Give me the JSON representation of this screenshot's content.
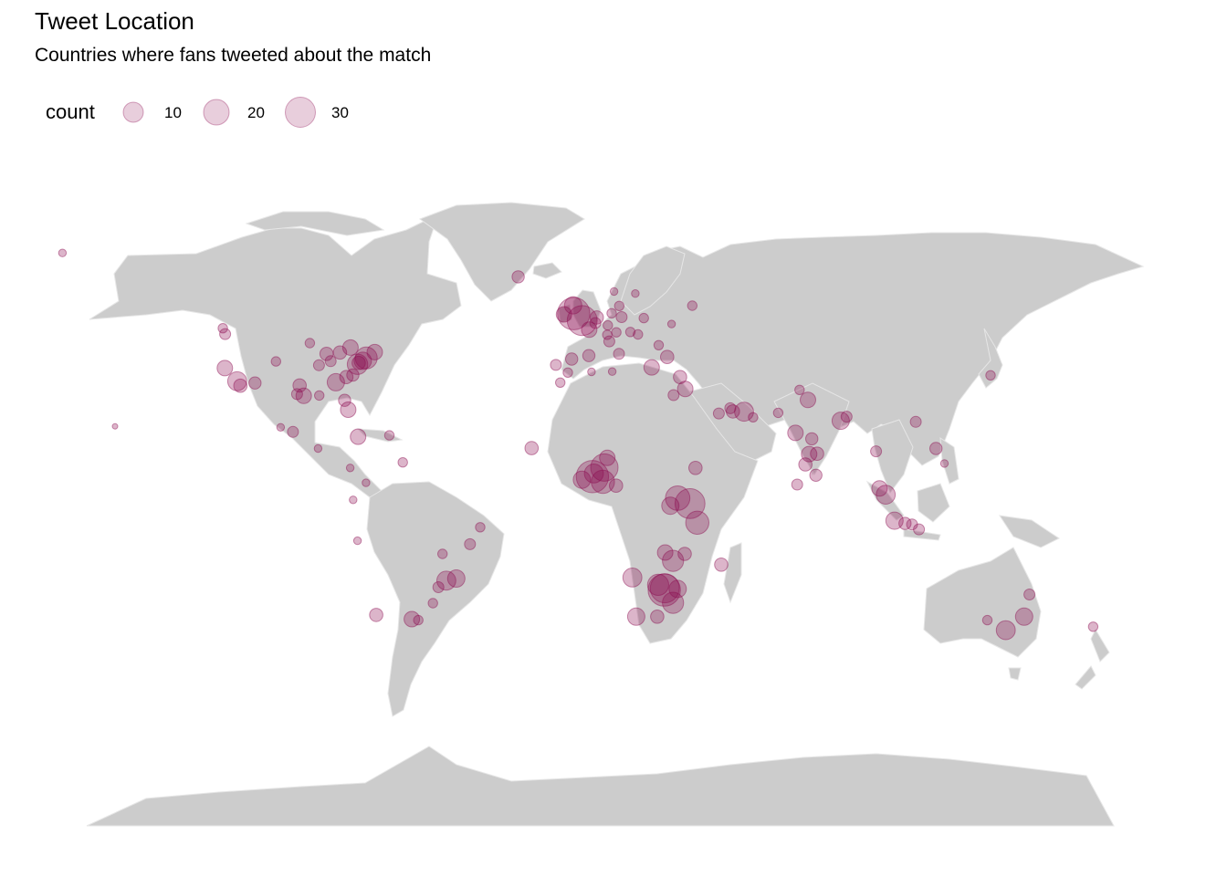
{
  "title": "Tweet Location",
  "subtitle": "Countries where fans tweeted about the match",
  "colors": {
    "land": "#cccccc",
    "border": "#e6e6e6",
    "point": "#8b0a50",
    "background": "#ffffff"
  },
  "legend": {
    "title": "count",
    "items": [
      {
        "label": "10",
        "value": 10
      },
      {
        "label": "20",
        "value": 20
      },
      {
        "label": "30",
        "value": 30
      }
    ]
  },
  "chart_data": {
    "type": "scatter",
    "title": "Tweet Location",
    "subtitle": "Countries where fans tweeted about the match",
    "projection": "equirectangular world map (longitude/latitude)",
    "size_variable": "count",
    "xlim": [
      -180,
      180
    ],
    "ylim": [
      -90,
      84
    ],
    "legend_position": "top-left",
    "grid": false,
    "points": [
      {
        "lon": -178,
        "lat": 71,
        "count": 2
      },
      {
        "lon": -160,
        "lat": 21,
        "count": 1
      },
      {
        "lon": -122.4,
        "lat": 37.8,
        "count": 8
      },
      {
        "lon": -118.2,
        "lat": 34.0,
        "count": 12
      },
      {
        "lon": -117.1,
        "lat": 32.7,
        "count": 6
      },
      {
        "lon": -122.3,
        "lat": 47.6,
        "count": 4
      },
      {
        "lon": -123.1,
        "lat": 49.3,
        "count": 3
      },
      {
        "lon": -112.1,
        "lat": 33.5,
        "count": 5
      },
      {
        "lon": -104.9,
        "lat": 39.7,
        "count": 3
      },
      {
        "lon": -96.8,
        "lat": 32.8,
        "count": 6
      },
      {
        "lon": -95.4,
        "lat": 29.8,
        "count": 8
      },
      {
        "lon": -97.7,
        "lat": 30.3,
        "count": 4
      },
      {
        "lon": -90.1,
        "lat": 29.9,
        "count": 3
      },
      {
        "lon": -87.6,
        "lat": 41.9,
        "count": 6
      },
      {
        "lon": -84.4,
        "lat": 33.7,
        "count": 10
      },
      {
        "lon": -80.2,
        "lat": 25.8,
        "count": 8
      },
      {
        "lon": -81.4,
        "lat": 28.5,
        "count": 5
      },
      {
        "lon": -77.0,
        "lat": 38.9,
        "count": 14
      },
      {
        "lon": -74.0,
        "lat": 40.7,
        "count": 16
      },
      {
        "lon": -75.2,
        "lat": 39.9,
        "count": 10
      },
      {
        "lon": -71.1,
        "lat": 42.4,
        "count": 8
      },
      {
        "lon": -79.4,
        "lat": 43.7,
        "count": 8
      },
      {
        "lon": -83.0,
        "lat": 42.3,
        "count": 6
      },
      {
        "lon": -86.2,
        "lat": 39.8,
        "count": 4
      },
      {
        "lon": -90.2,
        "lat": 38.6,
        "count": 4
      },
      {
        "lon": -93.3,
        "lat": 45.0,
        "count": 3
      },
      {
        "lon": -80.8,
        "lat": 35.2,
        "count": 6
      },
      {
        "lon": -78.6,
        "lat": 35.8,
        "count": 5
      },
      {
        "lon": -76.6,
        "lat": 39.3,
        "count": 6
      },
      {
        "lon": -99.1,
        "lat": 19.4,
        "count": 4
      },
      {
        "lon": -103.3,
        "lat": 20.7,
        "count": 2
      },
      {
        "lon": -90.5,
        "lat": 14.6,
        "count": 2
      },
      {
        "lon": -76.8,
        "lat": 18.0,
        "count": 8
      },
      {
        "lon": -66.1,
        "lat": 18.4,
        "count": 3
      },
      {
        "lon": -61.5,
        "lat": 10.6,
        "count": 3
      },
      {
        "lon": -79.5,
        "lat": 9.0,
        "count": 2
      },
      {
        "lon": -74.1,
        "lat": 4.7,
        "count": 2
      },
      {
        "lon": -78.5,
        "lat": -0.2,
        "count": 2
      },
      {
        "lon": -77.0,
        "lat": -12.0,
        "count": 2
      },
      {
        "lon": -47.9,
        "lat": -15.8,
        "count": 3
      },
      {
        "lon": -46.6,
        "lat": -23.5,
        "count": 12
      },
      {
        "lon": -43.2,
        "lat": -22.9,
        "count": 10
      },
      {
        "lon": -38.5,
        "lat": -13.0,
        "count": 4
      },
      {
        "lon": -35.0,
        "lat": -8.1,
        "count": 3
      },
      {
        "lon": -49.3,
        "lat": -25.4,
        "count": 4
      },
      {
        "lon": -51.2,
        "lat": -30.0,
        "count": 3
      },
      {
        "lon": -58.4,
        "lat": -34.6,
        "count": 8
      },
      {
        "lon": -70.6,
        "lat": -33.4,
        "count": 6
      },
      {
        "lon": -56.2,
        "lat": -34.9,
        "count": 3
      },
      {
        "lon": -22,
        "lat": 64.1,
        "count": 5
      },
      {
        "lon": -3,
        "lat": 53.5,
        "count": 35
      },
      {
        "lon": -0.1,
        "lat": 51.5,
        "count": 30
      },
      {
        "lon": -6.3,
        "lat": 53.3,
        "count": 8
      },
      {
        "lon": -3.2,
        "lat": 55.9,
        "count": 10
      },
      {
        "lon": 2.3,
        "lat": 48.9,
        "count": 8
      },
      {
        "lon": 4.9,
        "lat": 52.4,
        "count": 6
      },
      {
        "lon": 4.4,
        "lat": 50.8,
        "count": 4
      },
      {
        "lon": 13.4,
        "lat": 52.5,
        "count": 4
      },
      {
        "lon": 10.0,
        "lat": 53.6,
        "count": 3
      },
      {
        "lon": 8.7,
        "lat": 50.1,
        "count": 3
      },
      {
        "lon": 11.6,
        "lat": 48.1,
        "count": 3
      },
      {
        "lon": 8.5,
        "lat": 47.4,
        "count": 3
      },
      {
        "lon": 12.5,
        "lat": 41.9,
        "count": 4
      },
      {
        "lon": 9.2,
        "lat": 45.5,
        "count": 4
      },
      {
        "lon": -3.7,
        "lat": 40.4,
        "count": 5
      },
      {
        "lon": 2.2,
        "lat": 41.4,
        "count": 5
      },
      {
        "lon": -9.1,
        "lat": 38.7,
        "count": 4
      },
      {
        "lon": -5.0,
        "lat": 36.5,
        "count": 3
      },
      {
        "lon": 12.6,
        "lat": 55.7,
        "count": 3
      },
      {
        "lon": 18.1,
        "lat": 59.3,
        "count": 2
      },
      {
        "lon": 10.8,
        "lat": 59.9,
        "count": 2
      },
      {
        "lon": 21.0,
        "lat": 52.2,
        "count": 3
      },
      {
        "lon": 16.4,
        "lat": 48.2,
        "count": 3
      },
      {
        "lon": 19.0,
        "lat": 47.5,
        "count": 3
      },
      {
        "lon": 26.1,
        "lat": 44.4,
        "count": 3
      },
      {
        "lon": 23.7,
        "lat": 38.0,
        "count": 8
      },
      {
        "lon": 29.0,
        "lat": 41.0,
        "count": 6
      },
      {
        "lon": 33.4,
        "lat": 35.2,
        "count": 6
      },
      {
        "lon": 35.2,
        "lat": 31.8,
        "count": 8
      },
      {
        "lon": 37.6,
        "lat": 55.8,
        "count": 3
      },
      {
        "lon": 30.5,
        "lat": 50.5,
        "count": 2
      },
      {
        "lon": 31.2,
        "lat": 30.0,
        "count": 4
      },
      {
        "lon": -7.6,
        "lat": 33.6,
        "count": 3
      },
      {
        "lon": 10.2,
        "lat": 36.8,
        "count": 2
      },
      {
        "lon": 3.1,
        "lat": 36.7,
        "count": 2
      },
      {
        "lon": -17.4,
        "lat": 14.7,
        "count": 6
      },
      {
        "lon": 3.4,
        "lat": 6.5,
        "count": 35
      },
      {
        "lon": 7.5,
        "lat": 9.1,
        "count": 25
      },
      {
        "lon": 8.5,
        "lat": 11.9,
        "count": 8
      },
      {
        "lon": 7.0,
        "lat": 5.0,
        "count": 18
      },
      {
        "lon": 3.9,
        "lat": 7.4,
        "count": 12
      },
      {
        "lon": -0.2,
        "lat": 5.6,
        "count": 10
      },
      {
        "lon": 11.5,
        "lat": 3.9,
        "count": 6
      },
      {
        "lon": 36.8,
        "lat": -1.3,
        "count": 30
      },
      {
        "lon": 32.6,
        "lat": 0.3,
        "count": 20
      },
      {
        "lon": 39.3,
        "lat": -6.8,
        "count": 18
      },
      {
        "lon": 30.1,
        "lat": -1.9,
        "count": 10
      },
      {
        "lon": 38.7,
        "lat": 9.0,
        "count": 6
      },
      {
        "lon": 28.3,
        "lat": -15.4,
        "count": 8
      },
      {
        "lon": 31.0,
        "lat": -17.8,
        "count": 15
      },
      {
        "lon": 35.0,
        "lat": -15.8,
        "count": 6
      },
      {
        "lon": 32.6,
        "lat": -25.9,
        "count": 10
      },
      {
        "lon": 28.0,
        "lat": -26.2,
        "count": 35
      },
      {
        "lon": 28.2,
        "lat": -25.7,
        "count": 28
      },
      {
        "lon": 25.9,
        "lat": -24.7,
        "count": 15
      },
      {
        "lon": 31.0,
        "lat": -29.9,
        "count": 15
      },
      {
        "lon": 18.4,
        "lat": -33.9,
        "count": 10
      },
      {
        "lon": 25.6,
        "lat": -33.9,
        "count": 6
      },
      {
        "lon": 17.1,
        "lat": -22.6,
        "count": 12
      },
      {
        "lon": 47.5,
        "lat": -18.9,
        "count": 6
      },
      {
        "lon": 55.3,
        "lat": 25.2,
        "count": 12
      },
      {
        "lon": 51.5,
        "lat": 25.3,
        "count": 6
      },
      {
        "lon": 46.7,
        "lat": 24.7,
        "count": 4
      },
      {
        "lon": 58.4,
        "lat": 23.6,
        "count": 3
      },
      {
        "lon": 50.6,
        "lat": 26.2,
        "count": 4
      },
      {
        "lon": 67.0,
        "lat": 24.9,
        "count": 3
      },
      {
        "lon": 74.3,
        "lat": 31.5,
        "count": 3
      },
      {
        "lon": 77.2,
        "lat": 28.6,
        "count": 8
      },
      {
        "lon": 72.9,
        "lat": 19.1,
        "count": 8
      },
      {
        "lon": 77.6,
        "lat": 13.0,
        "count": 8
      },
      {
        "lon": 80.3,
        "lat": 13.1,
        "count": 6
      },
      {
        "lon": 78.5,
        "lat": 17.4,
        "count": 5
      },
      {
        "lon": 88.4,
        "lat": 22.6,
        "count": 10
      },
      {
        "lon": 76.3,
        "lat": 10.0,
        "count": 6
      },
      {
        "lon": 79.9,
        "lat": 6.9,
        "count": 5
      },
      {
        "lon": 90.4,
        "lat": 23.8,
        "count": 4
      },
      {
        "lon": 73.5,
        "lat": 4.2,
        "count": 4
      },
      {
        "lon": 100.5,
        "lat": 13.8,
        "count": 4
      },
      {
        "lon": 101.7,
        "lat": 3.1,
        "count": 8
      },
      {
        "lon": 103.8,
        "lat": 1.3,
        "count": 12
      },
      {
        "lon": 106.8,
        "lat": -6.2,
        "count": 10
      },
      {
        "lon": 110.4,
        "lat": -7.0,
        "count": 5
      },
      {
        "lon": 112.8,
        "lat": -7.3,
        "count": 4
      },
      {
        "lon": 115.2,
        "lat": -8.7,
        "count": 4
      },
      {
        "lon": 114.1,
        "lat": 22.3,
        "count": 4
      },
      {
        "lon": 121.0,
        "lat": 14.6,
        "count": 5
      },
      {
        "lon": 123.9,
        "lat": 10.3,
        "count": 2
      },
      {
        "lon": 139.7,
        "lat": 35.7,
        "count": 3
      },
      {
        "lon": 151.2,
        "lat": -33.9,
        "count": 10
      },
      {
        "lon": 144.9,
        "lat": -37.8,
        "count": 12
      },
      {
        "lon": 138.6,
        "lat": -34.9,
        "count": 3
      },
      {
        "lon": 153.0,
        "lat": -27.5,
        "count": 4
      },
      {
        "lon": 174.8,
        "lat": -36.8,
        "count": 3
      }
    ]
  }
}
